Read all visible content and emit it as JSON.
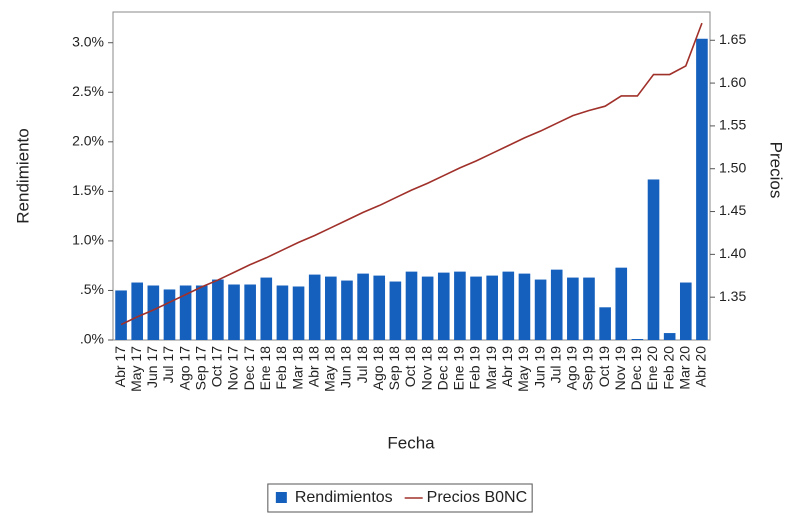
{
  "chart_data": {
    "type": "bar",
    "x_label": "Fecha",
    "y_label": "Rendimiento",
    "y2_label": "Precios",
    "categories": [
      "Abr 17",
      "May 17",
      "Jun 17",
      "Jul 17",
      "Ago 17",
      "Sep 17",
      "Oct 17",
      "Nov 17",
      "Dec 17",
      "Ene 18",
      "Feb 18",
      "Mar 18",
      "Abr 18",
      "May 18",
      "Jun 18",
      "Jul 18",
      "Ago 18",
      "Sep 18",
      "Oct 18",
      "Nov 18",
      "Dec 18",
      "Ene 19",
      "Feb 19",
      "Mar 19",
      "Abr 19",
      "May 19",
      "Jun 19",
      "Jul 19",
      "Ago 19",
      "Sep 19",
      "Oct 19",
      "Nov 19",
      "Dec 19",
      "Ene 20",
      "Feb 20",
      "Mar 20",
      "Abr 20"
    ],
    "series": [
      {
        "name": "Rendimientos",
        "type": "bar",
        "color": "#1560bd",
        "values": [
          0.5,
          0.58,
          0.55,
          0.51,
          0.55,
          0.55,
          0.61,
          0.56,
          0.56,
          0.63,
          0.55,
          0.54,
          0.66,
          0.64,
          0.6,
          0.67,
          0.65,
          0.59,
          0.69,
          0.64,
          0.68,
          0.69,
          0.64,
          0.65,
          0.69,
          0.67,
          0.61,
          0.71,
          0.63,
          0.63,
          0.33,
          0.73,
          0.01,
          1.62,
          0.07,
          0.58,
          3.04
        ]
      },
      {
        "name": "Precios B0NC",
        "type": "line",
        "axis": "y2",
        "color": "#a0302a",
        "values": [
          1.318,
          1.327,
          1.335,
          1.344,
          1.353,
          1.362,
          1.37,
          1.379,
          1.388,
          1.396,
          1.405,
          1.414,
          1.422,
          1.431,
          1.44,
          1.449,
          1.457,
          1.466,
          1.475,
          1.483,
          1.492,
          1.501,
          1.509,
          1.518,
          1.527,
          1.536,
          1.544,
          1.553,
          1.562,
          1.568,
          1.573,
          1.585,
          1.585,
          1.61,
          1.61,
          1.62,
          1.67
        ]
      }
    ],
    "ylim": [
      0,
      3.31
    ],
    "yticks": [
      {
        "value": 0,
        "label": ".0%"
      },
      {
        "value": 0.5,
        "label": ".5%"
      },
      {
        "value": 1.0,
        "label": "1.0%"
      },
      {
        "value": 1.5,
        "label": "1.5%"
      },
      {
        "value": 2.0,
        "label": "2.0%"
      },
      {
        "value": 2.5,
        "label": "2.5%"
      },
      {
        "value": 3.0,
        "label": "3.0%"
      }
    ],
    "y2lim": [
      1.3,
      1.683
    ],
    "y2ticks": [
      1.35,
      {
        "value": 1.4,
        "label": "1.40"
      },
      1.45,
      {
        "value": 1.5,
        "label": "1.50"
      },
      1.55,
      {
        "value": 1.6,
        "label": "1.60"
      },
      1.65
    ],
    "legend": "bottom"
  }
}
